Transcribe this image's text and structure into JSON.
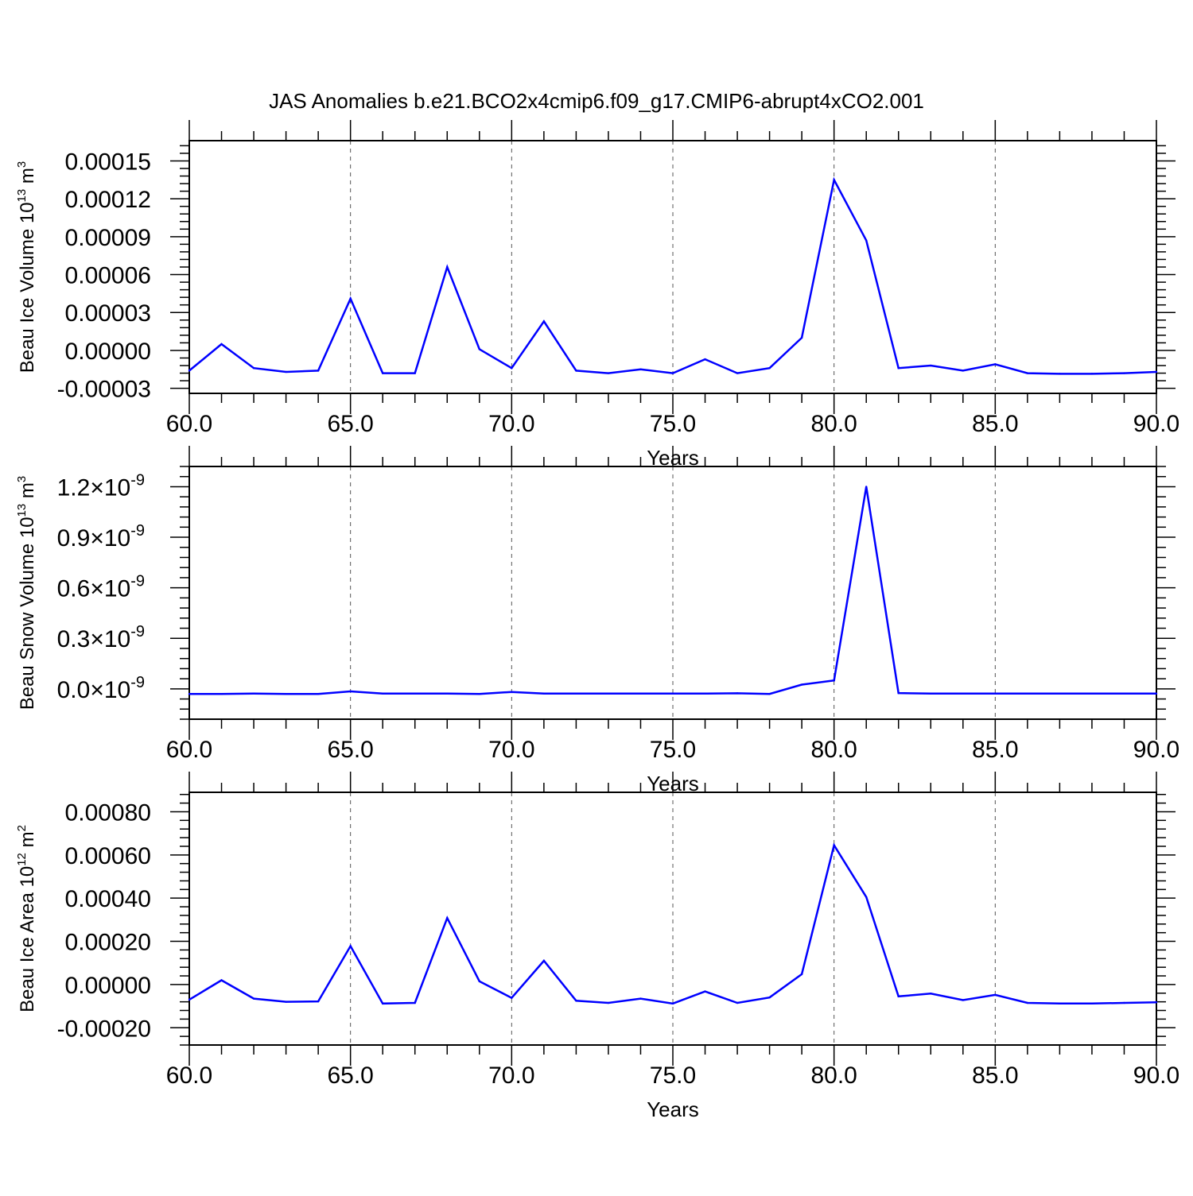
{
  "figure_title": "JAS Anomalies b.e21.BCO2x4cmip6.f09_g17.CMIP6-abrupt4xCO2.001",
  "line_color": "#0000ff",
  "chart_data": [
    {
      "type": "line",
      "title": "",
      "xlabel": "Years",
      "ylabel": "Beau Ice Volume 10",
      "ylabel_exponent": "13",
      "ylabel_unit": "m",
      "ylabel_unit_exponent": "3",
      "xlim": [
        60,
        90
      ],
      "ylim": [
        -3e-05,
        0.00015
      ],
      "ylim_plot": [
        -3.4e-05,
        0.000166
      ],
      "x_ticks": [
        "60.0",
        "65.0",
        "70.0",
        "75.0",
        "80.0",
        "85.0",
        "90.0"
      ],
      "y_ticks": [
        {
          "value": 0.00015,
          "label": "0.00015"
        },
        {
          "value": 0.00012,
          "label": "0.00012"
        },
        {
          "value": 9e-05,
          "label": "0.00009"
        },
        {
          "value": 6e-05,
          "label": "0.00006"
        },
        {
          "value": 3e-05,
          "label": "0.00003"
        },
        {
          "value": 0.0,
          "label": "0.00000"
        },
        {
          "value": -3e-05,
          "label": "-0.00003"
        }
      ],
      "grid": "vertical dashed at major x ticks",
      "series": [
        {
          "x": [
            60,
            61,
            62,
            63,
            64,
            65,
            66,
            67,
            68,
            69,
            70,
            71,
            72,
            73,
            74,
            75,
            76,
            77,
            78,
            79,
            80,
            81,
            82,
            83,
            84,
            85,
            86,
            87,
            88,
            89,
            90
          ],
          "values": [
            -1.6e-05,
            5e-06,
            -1.4e-05,
            -1.7e-05,
            -1.6e-05,
            4.1e-05,
            -1.8e-05,
            -1.8e-05,
            6.6e-05,
            1e-06,
            -1.4e-05,
            2.3e-05,
            -1.6e-05,
            -1.8e-05,
            -1.5e-05,
            -1.8e-05,
            -7e-06,
            -1.8e-05,
            -1.4e-05,
            1e-05,
            0.000135,
            8.7e-05,
            -1.4e-05,
            -1.2e-05,
            -1.6e-05,
            -1.1e-05,
            -1.8e-05,
            -1.85e-05,
            -1.85e-05,
            -1.8e-05,
            -1.7e-05
          ]
        }
      ]
    },
    {
      "type": "line",
      "title": "",
      "xlabel": "Years",
      "ylabel": "Beau Snow Volume 10",
      "ylabel_exponent": "13",
      "ylabel_unit": "m",
      "ylabel_unit_exponent": "3",
      "xlim": [
        60,
        90
      ],
      "ylim": [
        0.0,
        1.2
      ],
      "ylim_plot": [
        -0.18,
        1.32
      ],
      "y_scale_label": "×10⁻⁹",
      "x_ticks": [
        "60.0",
        "65.0",
        "70.0",
        "75.0",
        "80.0",
        "85.0",
        "90.0"
      ],
      "y_ticks": [
        {
          "value": 1.2,
          "mant": "1.2",
          "times": "×10",
          "exp": "-9"
        },
        {
          "value": 0.9,
          "mant": "0.9",
          "times": "×10",
          "exp": "-9"
        },
        {
          "value": 0.6,
          "mant": "0.6",
          "times": "×10",
          "exp": "-9"
        },
        {
          "value": 0.3,
          "mant": "0.3",
          "times": "×10",
          "exp": "-9"
        },
        {
          "value": 0.0,
          "mant": "0.0",
          "times": "×10",
          "exp": "-9"
        }
      ],
      "grid": "vertical dashed at major x ticks",
      "series": [
        {
          "x": [
            60,
            61,
            62,
            63,
            64,
            65,
            66,
            67,
            68,
            69,
            70,
            71,
            72,
            73,
            74,
            75,
            76,
            77,
            78,
            79,
            80,
            81,
            82,
            83,
            84,
            85,
            86,
            87,
            88,
            89,
            90
          ],
          "values": [
            -0.03,
            -0.03,
            -0.028,
            -0.03,
            -0.03,
            -0.015,
            -0.028,
            -0.028,
            -0.028,
            -0.03,
            -0.018,
            -0.028,
            -0.028,
            -0.028,
            -0.028,
            -0.028,
            -0.028,
            -0.026,
            -0.03,
            0.025,
            0.05,
            1.2,
            -0.025,
            -0.028,
            -0.028,
            -0.028,
            -0.028,
            -0.028,
            -0.028,
            -0.028,
            -0.028
          ]
        }
      ]
    },
    {
      "type": "line",
      "title": "",
      "xlabel": "Years",
      "ylabel": "Beau Ice Area 10",
      "ylabel_exponent": "12",
      "ylabel_unit": "m",
      "ylabel_unit_exponent": "2",
      "xlim": [
        60,
        90
      ],
      "ylim": [
        -0.0002,
        0.0008
      ],
      "ylim_plot": [
        -0.00028,
        0.00089
      ],
      "x_ticks": [
        "60.0",
        "65.0",
        "70.0",
        "75.0",
        "80.0",
        "85.0",
        "90.0"
      ],
      "y_ticks": [
        {
          "value": 0.0008,
          "label": "0.00080"
        },
        {
          "value": 0.0006,
          "label": "0.00060"
        },
        {
          "value": 0.0004,
          "label": "0.00040"
        },
        {
          "value": 0.0002,
          "label": "0.00020"
        },
        {
          "value": 0.0,
          "label": "0.00000"
        },
        {
          "value": -0.0002,
          "label": "-0.00020"
        }
      ],
      "grid": "vertical dashed at major x ticks",
      "series": [
        {
          "x": [
            60,
            61,
            62,
            63,
            64,
            65,
            66,
            67,
            68,
            69,
            70,
            71,
            72,
            73,
            74,
            75,
            76,
            77,
            78,
            79,
            80,
            81,
            82,
            83,
            84,
            85,
            86,
            87,
            88,
            89,
            90
          ],
          "values": [
            -7e-05,
            2e-05,
            -6.5e-05,
            -8e-05,
            -7.8e-05,
            0.000178,
            -8.8e-05,
            -8.5e-05,
            0.000308,
            1.5e-05,
            -6.2e-05,
            0.00011,
            -7.5e-05,
            -8.5e-05,
            -6.5e-05,
            -8.8e-05,
            -3.2e-05,
            -8.5e-05,
            -6e-05,
            4.8e-05,
            0.000645,
            0.000405,
            -5.5e-05,
            -4.2e-05,
            -7.2e-05,
            -4.8e-05,
            -8.5e-05,
            -8.8e-05,
            -8.8e-05,
            -8.5e-05,
            -8.2e-05
          ]
        }
      ]
    }
  ]
}
